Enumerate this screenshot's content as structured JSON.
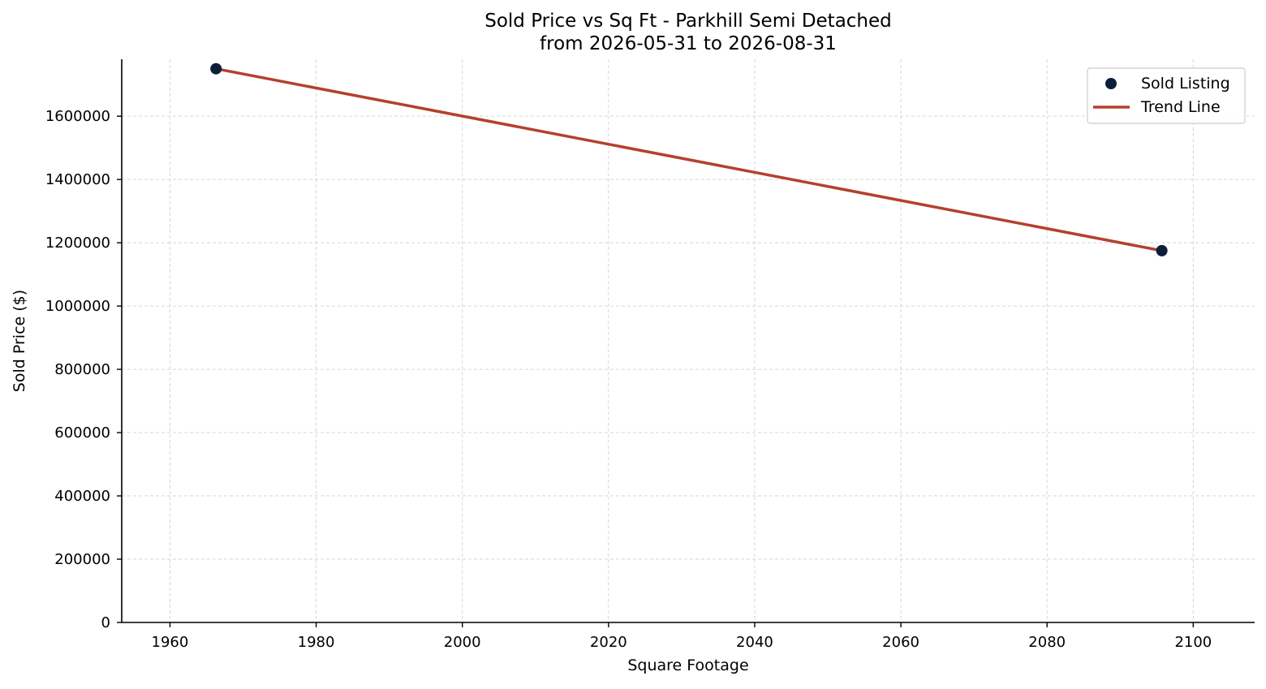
{
  "chart_data": {
    "type": "scatter",
    "title": "Sold Price vs Sq Ft - Parkhill Semi Detached",
    "subtitle": "from 2026-05-31 to 2026-08-31",
    "xlabel": "Square Footage",
    "ylabel": "Sold Price ($)",
    "xlim": [
      1953.4,
      2108.4
    ],
    "ylim": [
      0,
      1780000
    ],
    "x_ticks": [
      1960,
      1980,
      2000,
      2020,
      2040,
      2060,
      2080,
      2100
    ],
    "y_ticks": [
      0,
      200000,
      400000,
      600000,
      800000,
      1000000,
      1200000,
      1400000,
      1600000
    ],
    "grid": true,
    "legend_position": "top-right",
    "series": [
      {
        "name": "Sold Listing",
        "kind": "scatter",
        "color": "#0b1f3a",
        "x": [
          1966.3,
          2095.7
        ],
        "y": [
          1750000,
          1175000
        ]
      },
      {
        "name": "Trend Line",
        "kind": "line",
        "color": "#b5402e",
        "x": [
          1966.3,
          2095.7
        ],
        "y": [
          1750000,
          1175000
        ]
      }
    ]
  }
}
